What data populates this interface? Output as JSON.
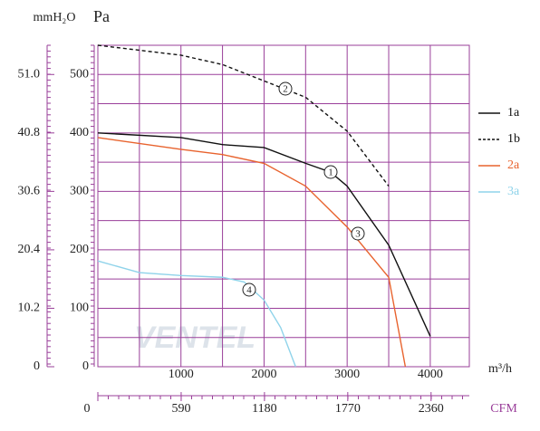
{
  "chart_data": {
    "type": "line",
    "y_label": "Pa",
    "y2_label": "mmH₂O",
    "x_label": "m³/h",
    "x2_label": "CFM",
    "watermark": "VENTEL",
    "xlim": [
      0,
      4470
    ],
    "ylim": [
      0,
      550
    ],
    "y2lim": [
      0,
      56.1
    ],
    "x2lim": [
      0,
      2631
    ],
    "xticks": [
      1000,
      2000,
      3000,
      4000
    ],
    "yticks": [
      0,
      100,
      200,
      300,
      400,
      500
    ],
    "y2ticks": [
      0,
      10.2,
      20.4,
      30.6,
      40.8,
      {
        "value": 51,
        "label": "51.0"
      }
    ],
    "x2ticks": [
      0,
      590,
      1180,
      1770,
      2360
    ],
    "grid": true,
    "legend": "right",
    "series": [
      {
        "name": "1a",
        "color": "#111111",
        "dashed": false,
        "x": [
          0,
          1000,
          1500,
          2000,
          2500,
          2800,
          3000,
          3500,
          4000
        ],
        "values": [
          400,
          392,
          380,
          375,
          348,
          333,
          309,
          208,
          52
        ]
      },
      {
        "name": "1b",
        "color": "#111111",
        "dashed": true,
        "x": [
          0,
          1000,
          1500,
          2000,
          2500,
          3000,
          3500
        ],
        "values": [
          550,
          533,
          517,
          489,
          461,
          403,
          309
        ]
      },
      {
        "name": "2a",
        "color": "#e8632e",
        "dashed": false,
        "x": [
          0,
          1000,
          1500,
          2000,
          2500,
          3000,
          3500,
          3700
        ],
        "values": [
          392,
          372,
          363,
          348,
          309,
          239,
          153,
          0
        ]
      },
      {
        "name": "3a",
        "color": "#8fd3ea",
        "dashed": false,
        "x": [
          0,
          500,
          1000,
          1500,
          1760,
          2000,
          2200,
          2380
        ],
        "values": [
          181,
          161,
          156,
          153,
          145,
          114,
          67,
          0
        ]
      }
    ],
    "annotations": [
      "1",
      "2",
      "3",
      "4"
    ]
  }
}
